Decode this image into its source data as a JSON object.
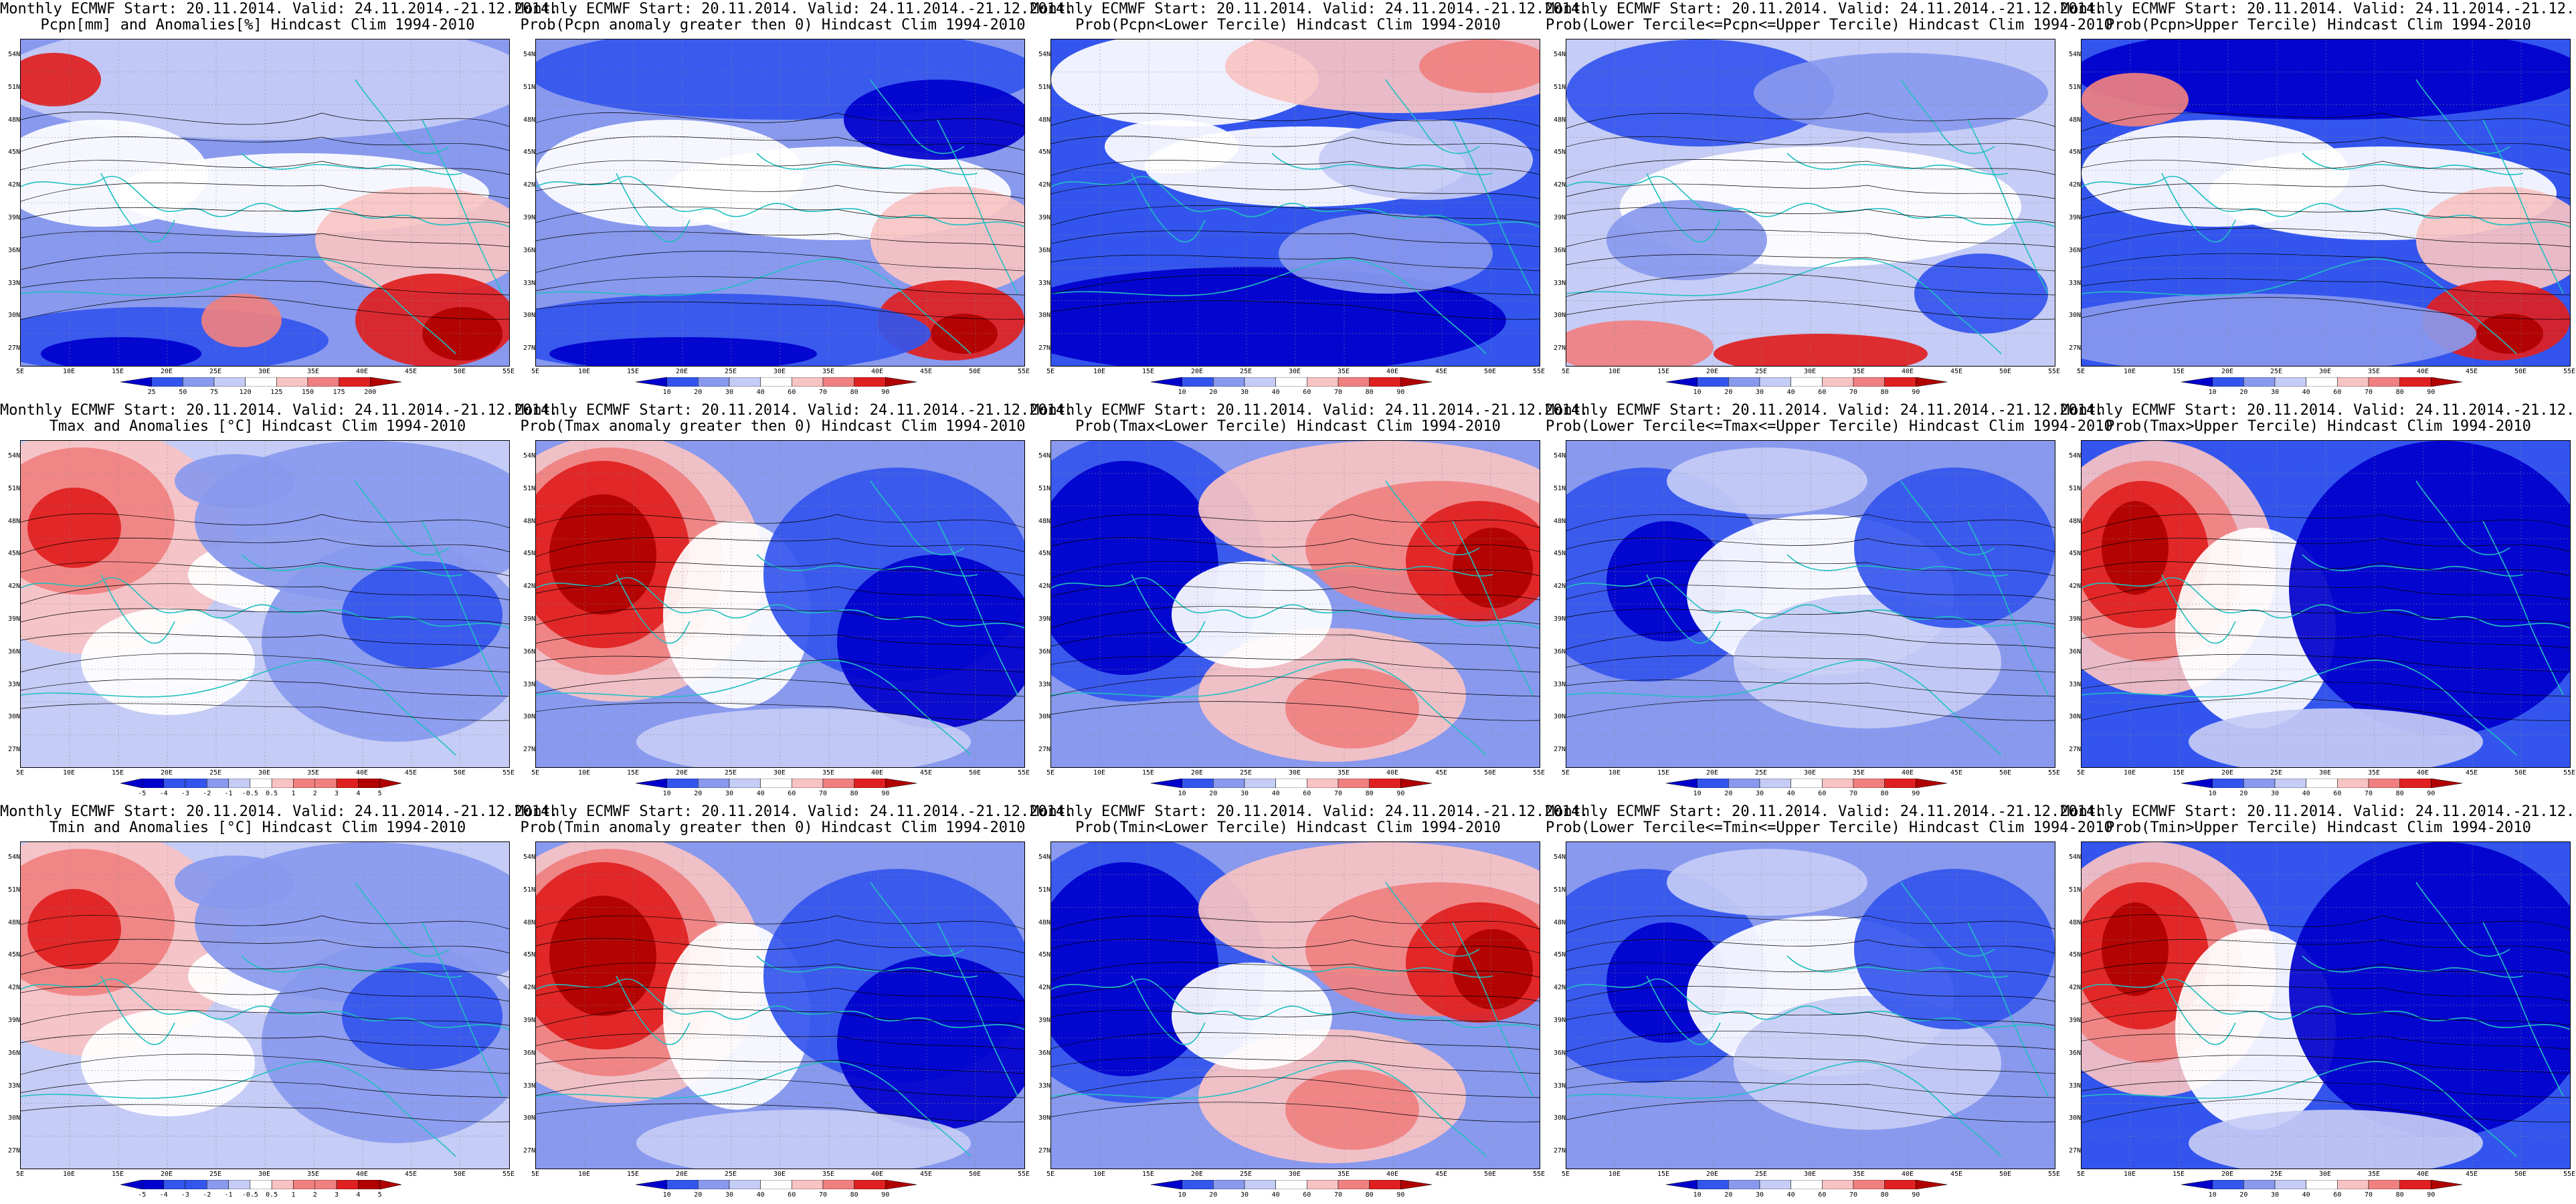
{
  "common": {
    "title_line1": "Monthly ECMWF Start: 20.11.2014. Valid: 24.11.2014.-21.12.2014.",
    "lat_labels": [
      "54N",
      "51N",
      "48N",
      "45N",
      "42N",
      "39N",
      "36N",
      "33N",
      "30N",
      "27N"
    ],
    "lon_labels": [
      "5E",
      "10E",
      "15E",
      "20E",
      "25E",
      "30E",
      "35E",
      "40E",
      "45E",
      "50E",
      "55E"
    ]
  },
  "colors": {
    "blue_dark": "#0000cc",
    "blue_mid": "#3355ee",
    "blue_light": "#8899ee",
    "blue_pale": "#c5ccf5",
    "white": "#ffffff",
    "red_pale": "#f8c3c3",
    "red_light": "#f08080",
    "red_mid": "#e02020",
    "red_dark": "#b00000",
    "coast": "#20c0c0",
    "contour": "#000000"
  },
  "panels": [
    {
      "id": "r1c1",
      "line2": "Pcpn[mm] and Anomalies[%] Hindcast Clim 1994-2010",
      "scale": [
        "25",
        "50",
        "75",
        "120",
        "125",
        "150",
        "175",
        "200"
      ],
      "pattern": "pcpn_anom"
    },
    {
      "id": "r1c2",
      "line2": "Prob(Pcpn anomaly greater then 0) Hindcast Clim 1994-2010",
      "scale": [
        "10",
        "20",
        "30",
        "40",
        "60",
        "70",
        "80",
        "90"
      ],
      "pattern": "pcpn_prob"
    },
    {
      "id": "r1c3",
      "line2": "Prob(Pcpn<Lower Tercile) Hindcast Clim 1994-2010",
      "scale": [
        "10",
        "20",
        "30",
        "40",
        "60",
        "70",
        "80",
        "90"
      ],
      "pattern": "pcpn_lower"
    },
    {
      "id": "r1c4",
      "line2": "Prob(Lower Tercile<=Pcpn<=Upper Tercile) Hindcast Clim 1994-2010",
      "scale": [
        "10",
        "20",
        "30",
        "40",
        "60",
        "70",
        "80",
        "90"
      ],
      "pattern": "pcpn_mid"
    },
    {
      "id": "r1c5",
      "line2": "Prob(Pcpn>Upper Tercile) Hindcast Clim 1994-2010",
      "scale": [
        "10",
        "20",
        "30",
        "40",
        "60",
        "70",
        "80",
        "90"
      ],
      "pattern": "pcpn_upper"
    },
    {
      "id": "r2c1",
      "line2": "Tmax and Anomalies [°C] Hindcast Clim 1994-2010",
      "scale": [
        "-5",
        "-4",
        "-3",
        "-2",
        "-1",
        "-0.5",
        "0.5",
        "1",
        "2",
        "3",
        "4",
        "5"
      ],
      "pattern": "t_anom"
    },
    {
      "id": "r2c2",
      "line2": "Prob(Tmax anomaly greater then 0) Hindcast Clim 1994-2010",
      "scale": [
        "10",
        "20",
        "30",
        "40",
        "60",
        "70",
        "80",
        "90"
      ],
      "pattern": "t_warm"
    },
    {
      "id": "r2c3",
      "line2": "Prob(Tmax<Lower Tercile) Hindcast Clim 1994-2010",
      "scale": [
        "10",
        "20",
        "30",
        "40",
        "60",
        "70",
        "80",
        "90"
      ],
      "pattern": "t_cold"
    },
    {
      "id": "r2c4",
      "line2": "Prob(Lower Tercile<=Tmax<=Upper Tercile) Hindcast Clim 1994-2010",
      "scale": [
        "10",
        "20",
        "30",
        "40",
        "60",
        "70",
        "80",
        "90"
      ],
      "pattern": "t_mid"
    },
    {
      "id": "r2c5",
      "line2": "Prob(Tmax>Upper Tercile) Hindcast Clim 1994-2010",
      "scale": [
        "10",
        "20",
        "30",
        "40",
        "60",
        "70",
        "80",
        "90"
      ],
      "pattern": "t_upper"
    },
    {
      "id": "r3c1",
      "line2": "Tmin and Anomalies [°C] Hindcast Clim 1994-2010",
      "scale": [
        "-5",
        "-4",
        "-3",
        "-2",
        "-1",
        "-0.5",
        "0.5",
        "1",
        "2",
        "3",
        "4",
        "5"
      ],
      "pattern": "t_anom"
    },
    {
      "id": "r3c2",
      "line2": "Prob(Tmin anomaly greater then 0) Hindcast Clim 1994-2010",
      "scale": [
        "10",
        "20",
        "30",
        "40",
        "60",
        "70",
        "80",
        "90"
      ],
      "pattern": "t_warm"
    },
    {
      "id": "r3c3",
      "line2": "Prob(Tmin<Lower Tercile) Hindcast Clim 1994-2010",
      "scale": [
        "10",
        "20",
        "30",
        "40",
        "60",
        "70",
        "80",
        "90"
      ],
      "pattern": "t_cold"
    },
    {
      "id": "r3c4",
      "line2": "Prob(Lower Tercile<=Tmin<=Upper Tercile) Hindcast Clim 1994-2010",
      "scale": [
        "10",
        "20",
        "30",
        "40",
        "60",
        "70",
        "80",
        "90"
      ],
      "pattern": "t_mid"
    },
    {
      "id": "r3c5",
      "line2": "Prob(Tmin>Upper Tercile) Hindcast Clim 1994-2010",
      "scale": [
        "10",
        "20",
        "30",
        "40",
        "60",
        "70",
        "80",
        "90"
      ],
      "pattern": "t_upper"
    }
  ]
}
